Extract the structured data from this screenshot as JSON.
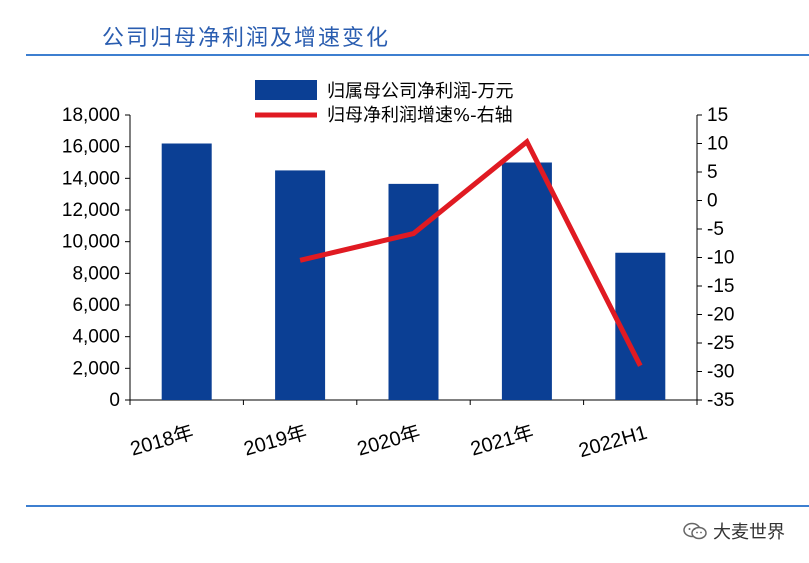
{
  "header": {
    "title": "公司归母净利润及增速变化"
  },
  "watermark": {
    "text": "大麦世界",
    "icon": "wechat-icon"
  },
  "chart_data": {
    "type": "bar",
    "title": "公司归母净利润及增速变化",
    "categories": [
      "2018年",
      "2019年",
      "2020年",
      "2021年",
      "2022H1"
    ],
    "series": [
      {
        "name": "归属母公司净利润-万元",
        "type": "bar",
        "axis": "left",
        "color": "#0b3f94",
        "values": [
          16200,
          14500,
          13650,
          15000,
          9300
        ]
      },
      {
        "name": "归母净利润增速%-右轴",
        "type": "line",
        "axis": "right",
        "color": "#e01a22",
        "values": [
          null,
          -10.5,
          -5.8,
          10.3,
          -29
        ]
      }
    ],
    "y_left": {
      "min": 0,
      "max": 18000,
      "ticks": [
        0,
        2000,
        4000,
        6000,
        8000,
        10000,
        12000,
        14000,
        16000,
        18000
      ],
      "tick_labels": [
        "0",
        "2,000",
        "4,000",
        "6,000",
        "8,000",
        "10,000",
        "12,000",
        "14,000",
        "16,000",
        "18,000"
      ]
    },
    "y_right": {
      "min": -35,
      "max": 15,
      "ticks": [
        -35,
        -30,
        -25,
        -20,
        -15,
        -10,
        -5,
        0,
        5,
        10,
        15
      ],
      "tick_labels": [
        "-35",
        "-30",
        "-25",
        "-20",
        "-15",
        "-10",
        "-5",
        "0",
        "5",
        "10",
        "15"
      ]
    },
    "legend": [
      {
        "label": "归属母公司净利润-万元",
        "kind": "bar",
        "color": "#0b3f94"
      },
      {
        "label": "归母净利润增速%-右轴",
        "kind": "line",
        "color": "#e01a22"
      }
    ],
    "legend_position": "top-center",
    "grid": false
  }
}
